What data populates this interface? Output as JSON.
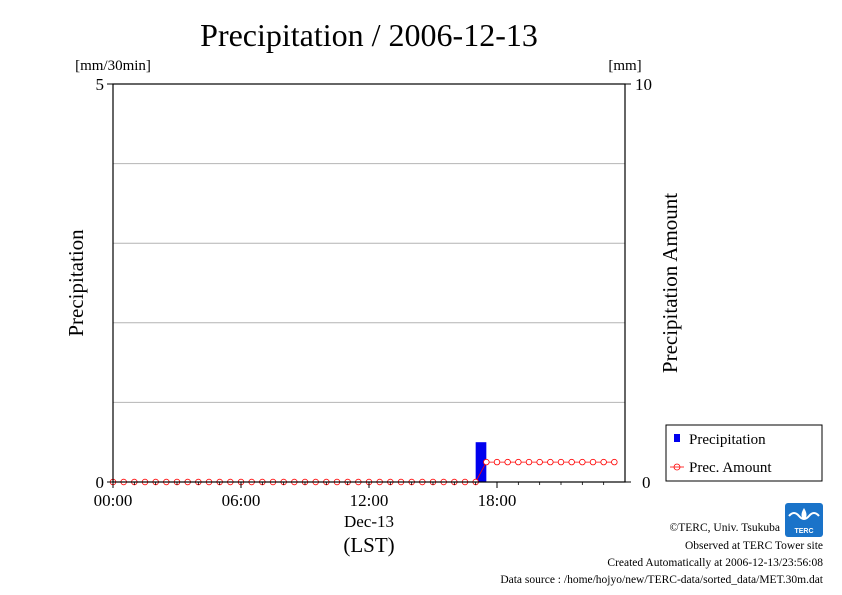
{
  "chart_data": {
    "type": "bar",
    "title": "Precipitation / 2006-12-13",
    "ylabel_left": "Precipitation",
    "ylabel_right": "Precipitation Amount",
    "unit_left": "[mm/30min]",
    "unit_right": "[mm]",
    "ylim_left": [
      0,
      5
    ],
    "ylim_right": [
      0,
      10
    ],
    "left_ticks": [
      "0",
      "5"
    ],
    "right_ticks": [
      "0",
      "10"
    ],
    "xlim_hours": [
      0,
      24
    ],
    "x_ticks": [
      "00:00",
      "06:00",
      "12:00",
      "18:00"
    ],
    "x_date_label": "Dec-13",
    "x_unit_label": "(LST)",
    "grid": "horizontal",
    "legend_position": "lower-right outside",
    "series": [
      {
        "name": "Precipitation",
        "kind": "bar",
        "axis": "left",
        "color": "#0000ee",
        "x_hours": [
          17.0
        ],
        "values": [
          0.5
        ]
      },
      {
        "name": "Prec. Amount",
        "kind": "line-marker",
        "axis": "right",
        "color": "#ff0000",
        "x_hours": [
          0.0,
          0.5,
          1.0,
          1.5,
          2.0,
          2.5,
          3.0,
          3.5,
          4.0,
          4.5,
          5.0,
          5.5,
          6.0,
          6.5,
          7.0,
          7.5,
          8.0,
          8.5,
          9.0,
          9.5,
          10.0,
          10.5,
          11.0,
          11.5,
          12.0,
          12.5,
          13.0,
          13.5,
          14.0,
          14.5,
          15.0,
          15.5,
          16.0,
          16.5,
          17.0,
          17.5,
          18.0,
          18.5,
          19.0,
          19.5,
          20.0,
          20.5,
          21.0,
          21.5,
          22.0,
          22.5,
          23.0,
          23.5
        ],
        "values": [
          0,
          0,
          0,
          0,
          0,
          0,
          0,
          0,
          0,
          0,
          0,
          0,
          0,
          0,
          0,
          0,
          0,
          0,
          0,
          0,
          0,
          0,
          0,
          0,
          0,
          0,
          0,
          0,
          0,
          0,
          0,
          0,
          0,
          0,
          0,
          0.5,
          0.5,
          0.5,
          0.5,
          0.5,
          0.5,
          0.5,
          0.5,
          0.5,
          0.5,
          0.5,
          0.5,
          0.5
        ]
      }
    ]
  },
  "footer": {
    "copyright": "©TERC, Univ. Tsukuba",
    "observed": "Observed at TERC Tower site",
    "created": "Created Automatically at 2006-12-13/23:56:08",
    "source": "Data source : /home/hojyo/new/TERC-data/sorted_data/MET.30m.dat"
  },
  "logo": {
    "text": "TERC",
    "color": "#1a73c9"
  }
}
